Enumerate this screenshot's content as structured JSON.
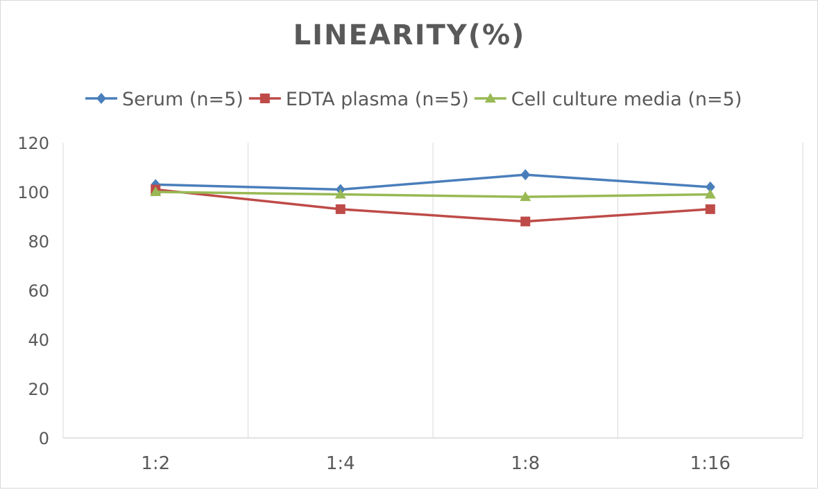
{
  "chart_data": {
    "type": "line",
    "title": "LINEARITY(%)",
    "categories": [
      "1:2",
      "1:4",
      "1:8",
      "1:16"
    ],
    "series": [
      {
        "name": "Serum (n=5)",
        "values": [
          103,
          101,
          107,
          102
        ],
        "color": "#4a7ebb",
        "marker": "diamond"
      },
      {
        "name": "EDTA plasma (n=5)",
        "values": [
          101,
          93,
          88,
          93
        ],
        "color": "#be4b48",
        "marker": "square"
      },
      {
        "name": "Cell culture media (n=5)",
        "values": [
          100,
          99,
          98,
          99
        ],
        "color": "#98b954",
        "marker": "triangle"
      }
    ],
    "ylim": [
      0,
      120
    ],
    "yticks": [
      0,
      20,
      40,
      60,
      80,
      100,
      120
    ],
    "grid": "vertical",
    "legend": "top",
    "xlabel": "",
    "ylabel": ""
  }
}
